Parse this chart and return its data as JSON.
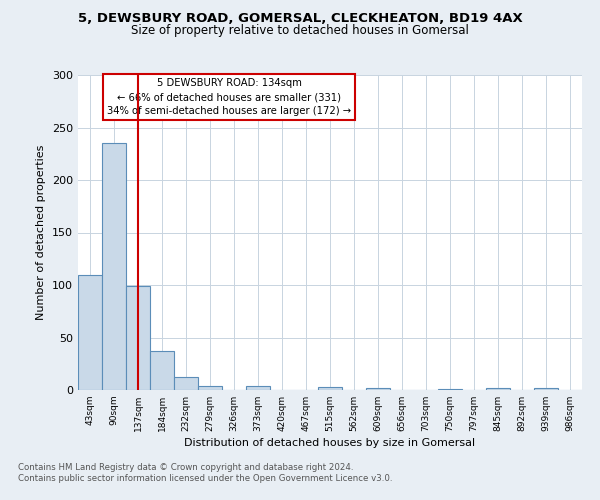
{
  "title_line1": "5, DEWSBURY ROAD, GOMERSAL, CLECKHEATON, BD19 4AX",
  "title_line2": "Size of property relative to detached houses in Gomersal",
  "xlabel": "Distribution of detached houses by size in Gomersal",
  "ylabel": "Number of detached properties",
  "bar_labels": [
    "43sqm",
    "90sqm",
    "137sqm",
    "184sqm",
    "232sqm",
    "279sqm",
    "326sqm",
    "373sqm",
    "420sqm",
    "467sqm",
    "515sqm",
    "562sqm",
    "609sqm",
    "656sqm",
    "703sqm",
    "750sqm",
    "797sqm",
    "845sqm",
    "892sqm",
    "939sqm",
    "986sqm"
  ],
  "bar_values": [
    110,
    235,
    99,
    37,
    12,
    4,
    0,
    4,
    0,
    0,
    3,
    0,
    2,
    0,
    0,
    1,
    0,
    2,
    0,
    2,
    0
  ],
  "bar_color": "#c9d9e8",
  "bar_edge_color": "#5b8db8",
  "annotation_line1": "5 DEWSBURY ROAD: 134sqm",
  "annotation_line2": "← 66% of detached houses are smaller (331)",
  "annotation_line3": "34% of semi-detached houses are larger (172) →",
  "vline_color": "#cc0000",
  "vline_x": 2.0,
  "annotation_box_color": "#ffffff",
  "annotation_box_edge_color": "#cc0000",
  "ylim": [
    0,
    300
  ],
  "yticks": [
    0,
    50,
    100,
    150,
    200,
    250,
    300
  ],
  "footer_line1": "Contains HM Land Registry data © Crown copyright and database right 2024.",
  "footer_line2": "Contains public sector information licensed under the Open Government Licence v3.0.",
  "bg_color": "#e8eef4",
  "plot_bg_color": "#ffffff",
  "grid_color": "#c8d4e0"
}
